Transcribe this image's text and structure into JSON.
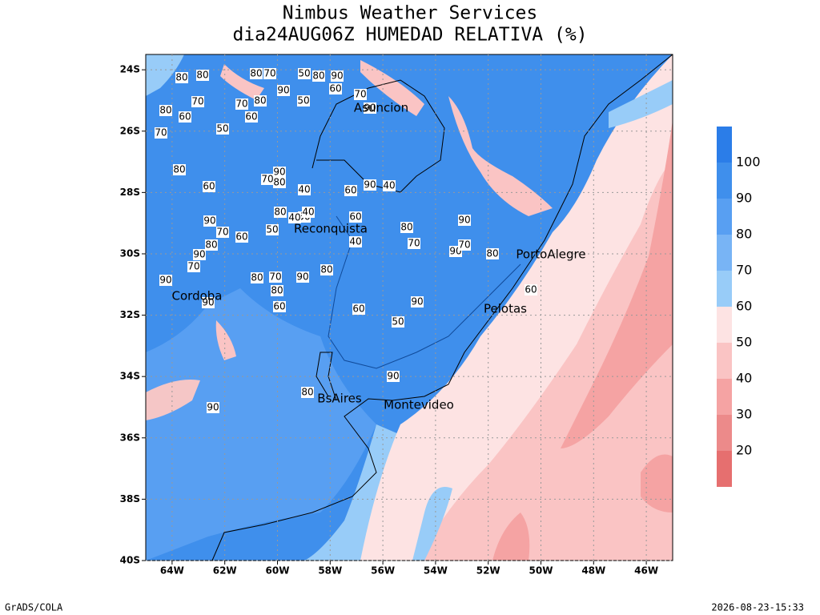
{
  "title": "Nimbus Weather Services",
  "subtitle": "dia24AUG06Z HUMEDAD RELATIVA (%)",
  "map": {
    "xlim": [
      -65,
      -45
    ],
    "ylim": [
      -40,
      -23.5
    ],
    "xticks": [
      {
        "value": -64,
        "label": "64W"
      },
      {
        "value": -62,
        "label": "62W"
      },
      {
        "value": -60,
        "label": "60W"
      },
      {
        "value": -58,
        "label": "58W"
      },
      {
        "value": -56,
        "label": "56W"
      },
      {
        "value": -54,
        "label": "54W"
      },
      {
        "value": -52,
        "label": "52W"
      },
      {
        "value": -50,
        "label": "50W"
      },
      {
        "value": -48,
        "label": "48W"
      },
      {
        "value": -46,
        "label": "46W"
      }
    ],
    "yticks": [
      {
        "value": -24,
        "label": "24S"
      },
      {
        "value": -26,
        "label": "26S"
      },
      {
        "value": -28,
        "label": "28S"
      },
      {
        "value": -30,
        "label": "30S"
      },
      {
        "value": -32,
        "label": "32S"
      },
      {
        "value": -34,
        "label": "34S"
      },
      {
        "value": -36,
        "label": "36S"
      },
      {
        "value": -38,
        "label": "38S"
      },
      {
        "value": -40,
        "label": "40S"
      }
    ],
    "grid": true,
    "cities": [
      "Asuncion",
      "Reconquista",
      "Cordoba",
      "PortoAlegre",
      "Pelotas",
      "BsAires",
      "Montevideo"
    ],
    "contour_labels": [
      80,
      70,
      80,
      60,
      70,
      50,
      80,
      70,
      80,
      60,
      80,
      70,
      50,
      90,
      50,
      80,
      90,
      60,
      70,
      90,
      40,
      90,
      60,
      80,
      90,
      80,
      70,
      60,
      80,
      90,
      70,
      60,
      80,
      90,
      70,
      90,
      90,
      80,
      70,
      80,
      90,
      80,
      60,
      50,
      40,
      40,
      50,
      40,
      60,
      40,
      60,
      50,
      90,
      80,
      70,
      90,
      70,
      80,
      90,
      60,
      90,
      80,
      90
    ]
  },
  "colorbar": {
    "levels": [
      20,
      30,
      40,
      50,
      60,
      70,
      80,
      90,
      100
    ],
    "colors": [
      "#e66f6f",
      "#ec8a8a",
      "#f5a3a3",
      "#fac4c4",
      "#fde3e3",
      "#98ccf8",
      "#78b4f5",
      "#589ff2",
      "#3f8fec",
      "#2b7de8"
    ]
  },
  "footer_left": "GrADS/COLA",
  "footer_right": "2026-08-23-15:33"
}
